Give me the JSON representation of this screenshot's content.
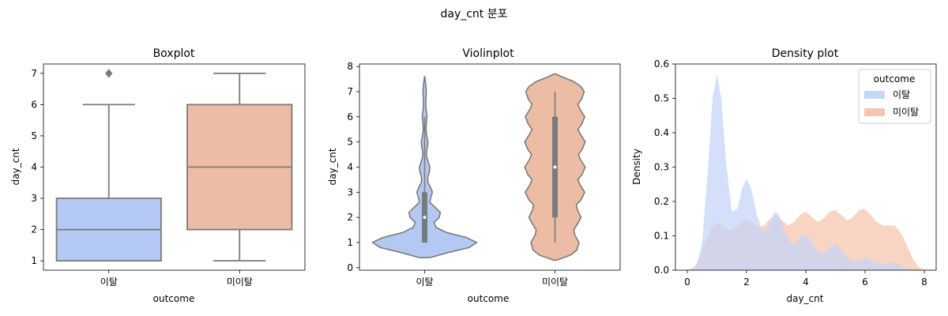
{
  "figure": {
    "suptitle": "day_cnt 분포"
  },
  "colors": {
    "churn": "#b3c9f4",
    "stay": "#edbca4",
    "churn_density": "#c6d6f7",
    "stay_density": "#f6c5ad",
    "line": "#7a7a7a"
  },
  "chart_data": [
    {
      "type": "boxplot",
      "title": "Boxplot",
      "xlabel": "outcome",
      "ylabel": "day_cnt",
      "ylim": [
        0.7,
        7.3
      ],
      "yticks": [
        1,
        2,
        3,
        4,
        5,
        6,
        7
      ],
      "categories": [
        "이탈",
        "미이탈"
      ],
      "boxes": [
        {
          "category": "이탈",
          "whisker_low": 1,
          "q1": 1,
          "median": 2,
          "q3": 3,
          "whisker_high": 6,
          "outliers": [
            7
          ]
        },
        {
          "category": "미이탈",
          "whisker_low": 1,
          "q1": 2,
          "median": 4,
          "q3": 6,
          "whisker_high": 7,
          "outliers": []
        }
      ]
    },
    {
      "type": "violin",
      "title": "Violinplot",
      "xlabel": "outcome",
      "ylabel": "day_cnt",
      "ylim": [
        -0.1,
        8.1
      ],
      "yticks": [
        0,
        1,
        2,
        3,
        4,
        5,
        6,
        7,
        8
      ],
      "categories": [
        "이탈",
        "미이탈"
      ],
      "violins": [
        {
          "category": "이탈",
          "q1": 1,
          "median": 2,
          "q3": 3,
          "whisker_low": 1,
          "whisker_high": 6,
          "profile": [
            [
              0.4,
              0.1
            ],
            [
              0.6,
              0.45
            ],
            [
              0.8,
              0.85
            ],
            [
              1.0,
              1.0
            ],
            [
              1.2,
              0.8
            ],
            [
              1.4,
              0.42
            ],
            [
              1.6,
              0.22
            ],
            [
              1.8,
              0.18
            ],
            [
              2.0,
              0.28
            ],
            [
              2.2,
              0.3
            ],
            [
              2.4,
              0.2
            ],
            [
              2.6,
              0.1
            ],
            [
              2.8,
              0.12
            ],
            [
              3.0,
              0.15
            ],
            [
              3.2,
              0.11
            ],
            [
              3.4,
              0.06
            ],
            [
              3.6,
              0.06
            ],
            [
              3.8,
              0.09
            ],
            [
              4.0,
              0.1
            ],
            [
              4.2,
              0.07
            ],
            [
              4.4,
              0.04
            ],
            [
              4.6,
              0.035
            ],
            [
              4.8,
              0.055
            ],
            [
              5.0,
              0.065
            ],
            [
              5.2,
              0.045
            ],
            [
              5.4,
              0.03
            ],
            [
              5.6,
              0.028
            ],
            [
              5.8,
              0.035
            ],
            [
              6.0,
              0.045
            ],
            [
              6.2,
              0.035
            ],
            [
              6.4,
              0.025
            ],
            [
              6.6,
              0.022
            ],
            [
              6.8,
              0.028
            ],
            [
              7.0,
              0.032
            ],
            [
              7.2,
              0.026
            ],
            [
              7.4,
              0.014
            ],
            [
              7.6,
              0.003
            ]
          ]
        },
        {
          "category": "미이탈",
          "q1": 2,
          "median": 4,
          "q3": 6,
          "whisker_low": 1,
          "whisker_high": 7,
          "profile": [
            [
              0.3,
              0.03
            ],
            [
              0.5,
              0.3
            ],
            [
              0.7,
              0.42
            ],
            [
              1.0,
              0.46
            ],
            [
              1.3,
              0.38
            ],
            [
              1.5,
              0.36
            ],
            [
              1.7,
              0.42
            ],
            [
              2.0,
              0.5
            ],
            [
              2.3,
              0.43
            ],
            [
              2.5,
              0.41
            ],
            [
              2.7,
              0.5
            ],
            [
              3.0,
              0.57
            ],
            [
              3.3,
              0.48
            ],
            [
              3.5,
              0.44
            ],
            [
              3.7,
              0.52
            ],
            [
              4.0,
              0.58
            ],
            [
              4.3,
              0.49
            ],
            [
              4.5,
              0.45
            ],
            [
              4.7,
              0.52
            ],
            [
              5.0,
              0.58
            ],
            [
              5.3,
              0.49
            ],
            [
              5.5,
              0.44
            ],
            [
              5.7,
              0.51
            ],
            [
              6.0,
              0.57
            ],
            [
              6.3,
              0.48
            ],
            [
              6.5,
              0.44
            ],
            [
              6.7,
              0.51
            ],
            [
              7.0,
              0.56
            ],
            [
              7.2,
              0.5
            ],
            [
              7.4,
              0.36
            ],
            [
              7.6,
              0.12
            ],
            [
              7.7,
              0.02
            ]
          ]
        }
      ]
    },
    {
      "type": "area",
      "title": "Density plot",
      "xlabel": "day_cnt",
      "ylabel": "Density",
      "xlim": [
        -0.4,
        8.4
      ],
      "ylim": [
        0,
        0.6
      ],
      "xticks": [
        0,
        2,
        4,
        6,
        8
      ],
      "yticks": [
        0.0,
        0.1,
        0.2,
        0.3,
        0.4,
        0.5,
        0.6
      ],
      "legend": {
        "title": "outcome",
        "placement": "top-right"
      },
      "series": [
        {
          "name": "이탈",
          "x": [
            0.0,
            0.3,
            0.5,
            0.7,
            0.85,
            1.0,
            1.15,
            1.3,
            1.5,
            1.7,
            1.85,
            2.0,
            2.15,
            2.35,
            2.55,
            2.75,
            2.95,
            3.1,
            3.3,
            3.5,
            3.7,
            3.85,
            4.0,
            4.2,
            4.4,
            4.6,
            4.8,
            5.0,
            5.2,
            5.4,
            5.6,
            5.8,
            6.0,
            6.2,
            6.4,
            6.6,
            6.8,
            7.0,
            7.2,
            7.4,
            7.6,
            7.8
          ],
          "y": [
            0.0,
            0.01,
            0.08,
            0.3,
            0.5,
            0.57,
            0.5,
            0.32,
            0.17,
            0.18,
            0.24,
            0.265,
            0.24,
            0.16,
            0.11,
            0.13,
            0.17,
            0.16,
            0.11,
            0.075,
            0.08,
            0.1,
            0.105,
            0.08,
            0.055,
            0.05,
            0.065,
            0.078,
            0.06,
            0.035,
            0.025,
            0.03,
            0.036,
            0.028,
            0.018,
            0.016,
            0.02,
            0.022,
            0.015,
            0.006,
            0.002,
            0.0
          ]
        },
        {
          "name": "미이탈",
          "x": [
            0.0,
            0.2,
            0.4,
            0.6,
            0.8,
            1.0,
            1.2,
            1.4,
            1.6,
            1.8,
            2.0,
            2.2,
            2.4,
            2.6,
            2.8,
            3.0,
            3.2,
            3.4,
            3.6,
            3.8,
            4.0,
            4.2,
            4.4,
            4.6,
            4.8,
            5.0,
            5.2,
            5.4,
            5.6,
            5.8,
            6.0,
            6.2,
            6.4,
            6.6,
            6.8,
            7.0,
            7.2,
            7.4,
            7.6,
            7.8,
            8.0
          ],
          "y": [
            0.0,
            0.005,
            0.03,
            0.08,
            0.12,
            0.14,
            0.13,
            0.115,
            0.12,
            0.14,
            0.15,
            0.14,
            0.125,
            0.13,
            0.15,
            0.16,
            0.145,
            0.13,
            0.14,
            0.16,
            0.17,
            0.155,
            0.14,
            0.15,
            0.17,
            0.175,
            0.16,
            0.145,
            0.155,
            0.175,
            0.178,
            0.16,
            0.14,
            0.13,
            0.13,
            0.13,
            0.11,
            0.075,
            0.035,
            0.01,
            0.0
          ]
        }
      ]
    }
  ]
}
